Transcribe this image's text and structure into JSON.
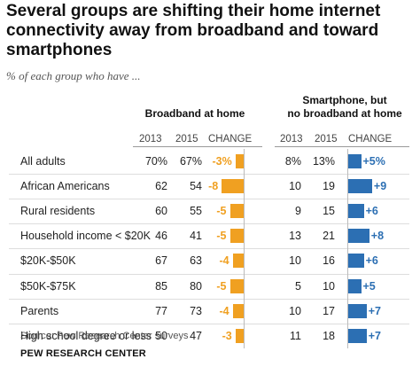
{
  "title": "Several groups are shifting their home internet connectivity away from broadband and toward smartphones",
  "subtitle": "% of each group who have ...",
  "source": "Source: Pew Research Center surveys",
  "credit": "PEW RESEARCH CENTER",
  "colors": {
    "negative": "#f0a021",
    "positive": "#2c6fb3"
  },
  "left_panel": {
    "heading": "Broadband at home",
    "col_2013": "2013",
    "col_2015": "2015",
    "col_change": "CHANGE"
  },
  "right_panel": {
    "heading_line1": "Smartphone, but",
    "heading_line2": "no broadband at home",
    "col_2013": "2013",
    "col_2015": "2015",
    "col_change": "CHANGE"
  },
  "rows": [
    {
      "label": "All adults",
      "bb_2013": "70%",
      "bb_2015": "67%",
      "bb_change": "-3%",
      "bb_delta": -3,
      "sp_2013": "8%",
      "sp_2015": "13%",
      "sp_change": "+5%",
      "sp_delta": 5
    },
    {
      "label": "African Americans",
      "bb_2013": "62",
      "bb_2015": "54",
      "bb_change": "-8",
      "bb_delta": -8,
      "sp_2013": "10",
      "sp_2015": "19",
      "sp_change": "+9",
      "sp_delta": 9
    },
    {
      "label": "Rural residents",
      "bb_2013": "60",
      "bb_2015": "55",
      "bb_change": "-5",
      "bb_delta": -5,
      "sp_2013": "9",
      "sp_2015": "15",
      "sp_change": "+6",
      "sp_delta": 6
    },
    {
      "label": "Household income < $20K",
      "bb_2013": "46",
      "bb_2015": "41",
      "bb_change": "-5",
      "bb_delta": -5,
      "sp_2013": "13",
      "sp_2015": "21",
      "sp_change": "+8",
      "sp_delta": 8
    },
    {
      "label": "$20K-$50K",
      "bb_2013": "67",
      "bb_2015": "63",
      "bb_change": "-4",
      "bb_delta": -4,
      "sp_2013": "10",
      "sp_2015": "16",
      "sp_change": "+6",
      "sp_delta": 6
    },
    {
      "label": "$50K-$75K",
      "bb_2013": "85",
      "bb_2015": "80",
      "bb_change": "-5",
      "bb_delta": -5,
      "sp_2013": "5",
      "sp_2015": "10",
      "sp_change": "+5",
      "sp_delta": 5
    },
    {
      "label": "Parents",
      "bb_2013": "77",
      "bb_2015": "73",
      "bb_change": "-4",
      "bb_delta": -4,
      "sp_2013": "10",
      "sp_2015": "17",
      "sp_change": "+7",
      "sp_delta": 7
    },
    {
      "label": "High school degree or less",
      "bb_2013": "50",
      "bb_2015": "47",
      "bb_change": "-3",
      "bb_delta": -3,
      "sp_2013": "11",
      "sp_2015": "18",
      "sp_change": "+7",
      "sp_delta": 7
    }
  ],
  "chart_data": [
    {
      "type": "bar",
      "title": "Broadband at home",
      "categories": [
        "All adults",
        "African Americans",
        "Rural residents",
        "Household income < $20K",
        "$20K-$50K",
        "$50K-$75K",
        "Parents",
        "High school degree or less"
      ],
      "series": [
        {
          "name": "2013",
          "values": [
            70,
            62,
            60,
            46,
            67,
            85,
            77,
            50
          ]
        },
        {
          "name": "2015",
          "values": [
            67,
            54,
            55,
            41,
            63,
            80,
            73,
            47
          ]
        },
        {
          "name": "CHANGE",
          "values": [
            -3,
            -8,
            -5,
            -5,
            -4,
            -5,
            -4,
            -3
          ]
        }
      ]
    },
    {
      "type": "bar",
      "title": "Smartphone, but no broadband at home",
      "categories": [
        "All adults",
        "African Americans",
        "Rural residents",
        "Household income < $20K",
        "$20K-$50K",
        "$50K-$75K",
        "Parents",
        "High school degree or less"
      ],
      "series": [
        {
          "name": "2013",
          "values": [
            8,
            10,
            9,
            13,
            10,
            5,
            10,
            11
          ]
        },
        {
          "name": "2015",
          "values": [
            13,
            19,
            15,
            21,
            16,
            10,
            17,
            18
          ]
        },
        {
          "name": "CHANGE",
          "values": [
            5,
            9,
            6,
            8,
            6,
            5,
            7,
            7
          ]
        }
      ]
    }
  ]
}
